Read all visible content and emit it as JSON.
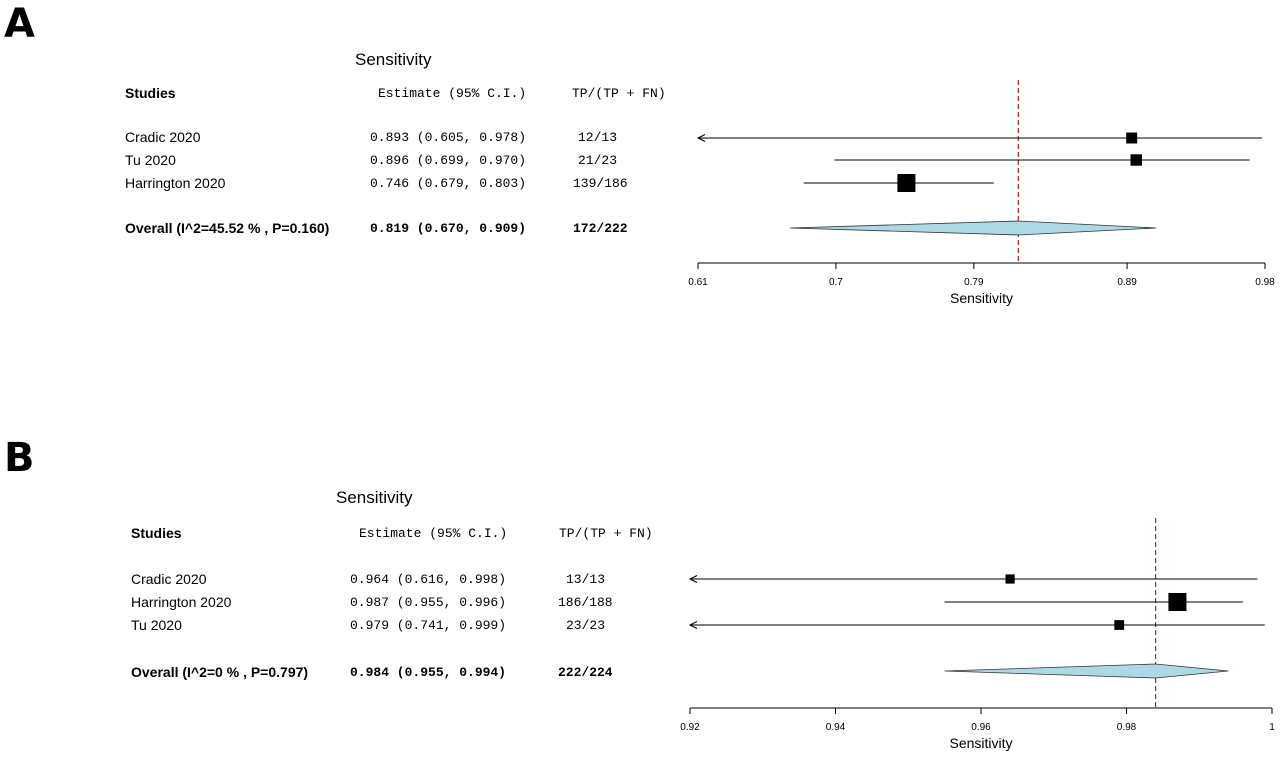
{
  "chart_data": [
    {
      "type": "forest",
      "panel_label": "A",
      "title": "Sensitivity",
      "xlabel": "Sensitivity",
      "headers": {
        "studies": "Studies",
        "estimate": "Estimate (95% C.I.)",
        "ratio": "TP/(TP + FN)"
      },
      "xlim": [
        0.61,
        0.98
      ],
      "ticks": [
        0.61,
        0.7,
        0.79,
        0.89,
        0.98
      ],
      "tick_labels": [
        "0.61",
        "0.7",
        "0.79",
        "0.89",
        "0.98"
      ],
      "reference_line": 0.819,
      "studies": [
        {
          "name": "Cradic 2020",
          "estimate": 0.893,
          "ci_low": 0.605,
          "ci_high": 0.978,
          "ci_text": "0.893 (0.605, 0.978)",
          "ratio": "12/13",
          "weight": 0.3
        },
        {
          "name": "Tu 2020",
          "estimate": 0.896,
          "ci_low": 0.699,
          "ci_high": 0.97,
          "ci_text": "0.896 (0.699, 0.970)",
          "ratio": "21/23",
          "weight": 0.35
        },
        {
          "name": "Harrington 2020",
          "estimate": 0.746,
          "ci_low": 0.679,
          "ci_high": 0.803,
          "ci_text": "0.746 (0.679, 0.803)",
          "ratio": "139/186",
          "weight": 1.0
        }
      ],
      "overall": {
        "label": "Overall (I^2=45.52 % , P=0.160)",
        "estimate": 0.819,
        "ci_low": 0.67,
        "ci_high": 0.909,
        "ci_text": "0.819 (0.670, 0.909)",
        "ratio": "172/222"
      }
    },
    {
      "type": "forest",
      "panel_label": "B",
      "title": "Sensitivity",
      "xlabel": "Sensitivity",
      "headers": {
        "studies": "Studies",
        "estimate": "Estimate (95% C.I.)",
        "ratio": "TP/(TP + FN)"
      },
      "xlim": [
        0.92,
        1.0
      ],
      "ticks": [
        0.92,
        0.94,
        0.96,
        0.98,
        1.0
      ],
      "tick_labels": [
        "0.92",
        "0.94",
        "0.96",
        "0.98",
        "1"
      ],
      "reference_line": 0.984,
      "studies": [
        {
          "name": "Cradic 2020",
          "estimate": 0.964,
          "ci_low": 0.616,
          "ci_high": 0.998,
          "ci_text": "0.964 (0.616, 0.998)",
          "ratio": "13/13",
          "weight": 0.2
        },
        {
          "name": "Harrington 2020",
          "estimate": 0.987,
          "ci_low": 0.955,
          "ci_high": 0.996,
          "ci_text": "0.987 (0.955, 0.996)",
          "ratio": "186/188",
          "weight": 1.0
        },
        {
          "name": "Tu 2020",
          "estimate": 0.979,
          "ci_low": 0.741,
          "ci_high": 0.999,
          "ci_text": "0.979 (0.741, 0.999)",
          "ratio": "23/23",
          "weight": 0.25
        }
      ],
      "overall": {
        "label": "Overall (I^2=0 % , P=0.797)",
        "estimate": 0.984,
        "ci_low": 0.955,
        "ci_high": 0.994,
        "ci_text": "0.984 (0.955, 0.994)",
        "ratio": "222/224"
      }
    }
  ],
  "colors": {
    "diamond_fill": "#add8e6",
    "reference_line": "#b22222",
    "marker": "#000000"
  }
}
